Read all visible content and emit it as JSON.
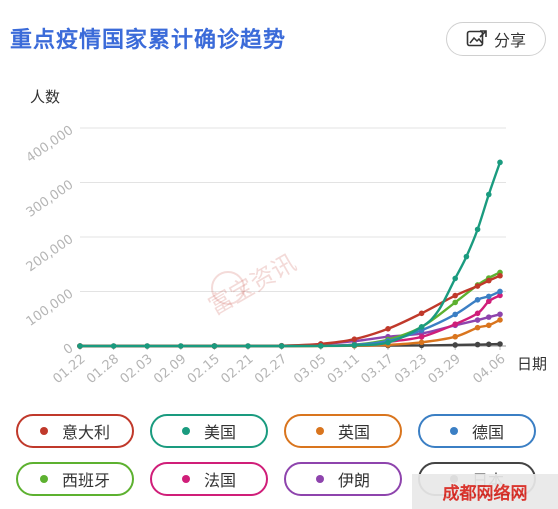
{
  "header": {
    "title": "重点疫情国家累计确诊趋势",
    "share_label": "分享",
    "share_icon": "share-image-icon"
  },
  "watermark": {
    "text": "富宝资讯",
    "corner_text": "成都网络网"
  },
  "colors": {
    "title": "#3b6bd9"
  },
  "chart_data": {
    "type": "line",
    "title": "",
    "ylabel": "人数",
    "xlabel": "日期",
    "ylim": [
      0,
      400000
    ],
    "yticks": [
      0,
      100000,
      200000,
      300000,
      400000
    ],
    "ytick_labels": [
      "0",
      "100,000",
      "200,000",
      "300,000",
      "400,000"
    ],
    "xtick_labels": [
      "01.22",
      "01.28",
      "02.03",
      "02.09",
      "02.15",
      "02.21",
      "02.27",
      "03.05",
      "03.11",
      "03.17",
      "03.23",
      "03.29",
      "04.06"
    ],
    "grid": "horizontal",
    "legend_position": "bottom",
    "x_days": [
      0,
      6,
      12,
      18,
      24,
      30,
      36,
      43,
      49,
      55,
      61,
      67,
      71,
      72,
      73,
      74,
      75
    ],
    "series": [
      {
        "name": "意大利",
        "color": "#c0392b",
        "points": [
          [
            0,
            0
          ],
          [
            6,
            0
          ],
          [
            12,
            0
          ],
          [
            18,
            0
          ],
          [
            24,
            0
          ],
          [
            30,
            0
          ],
          [
            36,
            600
          ],
          [
            43,
            3800
          ],
          [
            49,
            12500
          ],
          [
            55,
            31500
          ],
          [
            61,
            60000
          ],
          [
            67,
            92500
          ],
          [
            71,
            110000
          ],
          [
            73,
            120000
          ],
          [
            75,
            128900
          ]
        ]
      },
      {
        "name": "美国",
        "color": "#1a9b7f",
        "points": [
          [
            0,
            0
          ],
          [
            6,
            0
          ],
          [
            12,
            0
          ],
          [
            18,
            0
          ],
          [
            24,
            0
          ],
          [
            30,
            0
          ],
          [
            36,
            60
          ],
          [
            43,
            200
          ],
          [
            49,
            1300
          ],
          [
            55,
            6400
          ],
          [
            61,
            35000
          ],
          [
            64,
            65000
          ],
          [
            67,
            124000
          ],
          [
            69,
            164000
          ],
          [
            71,
            214000
          ],
          [
            73,
            278000
          ],
          [
            75,
            337000
          ]
        ]
      },
      {
        "name": "英国",
        "color": "#d9751e",
        "points": [
          [
            0,
            0
          ],
          [
            24,
            0
          ],
          [
            36,
            20
          ],
          [
            43,
            120
          ],
          [
            49,
            460
          ],
          [
            55,
            2000
          ],
          [
            61,
            6700
          ],
          [
            67,
            17000
          ],
          [
            71,
            33700
          ],
          [
            73,
            38000
          ],
          [
            75,
            47800
          ]
        ]
      },
      {
        "name": "德国",
        "color": "#3b7fc4",
        "points": [
          [
            0,
            0
          ],
          [
            24,
            0
          ],
          [
            36,
            30
          ],
          [
            43,
            540
          ],
          [
            49,
            2000
          ],
          [
            55,
            9300
          ],
          [
            61,
            29000
          ],
          [
            67,
            58000
          ],
          [
            71,
            84800
          ],
          [
            73,
            91000
          ],
          [
            75,
            100100
          ]
        ]
      },
      {
        "name": "西班牙",
        "color": "#5db130",
        "points": [
          [
            0,
            0
          ],
          [
            24,
            0
          ],
          [
            36,
            30
          ],
          [
            43,
            260
          ],
          [
            49,
            2300
          ],
          [
            55,
            11800
          ],
          [
            61,
            35000
          ],
          [
            67,
            80000
          ],
          [
            71,
            112000
          ],
          [
            73,
            124700
          ],
          [
            75,
            135000
          ]
        ]
      },
      {
        "name": "法国",
        "color": "#d01e79",
        "points": [
          [
            0,
            0
          ],
          [
            24,
            0
          ],
          [
            36,
            50
          ],
          [
            43,
            420
          ],
          [
            49,
            2300
          ],
          [
            55,
            7700
          ],
          [
            61,
            16700
          ],
          [
            67,
            40000
          ],
          [
            71,
            60000
          ],
          [
            73,
            82000
          ],
          [
            75,
            92800
          ]
        ]
      },
      {
        "name": "伊朗",
        "color": "#8e44ad",
        "points": [
          [
            0,
            0
          ],
          [
            24,
            0
          ],
          [
            36,
            100
          ],
          [
            43,
            3500
          ],
          [
            49,
            9000
          ],
          [
            55,
            17000
          ],
          [
            61,
            23000
          ],
          [
            67,
            38000
          ],
          [
            71,
            47600
          ],
          [
            73,
            53000
          ],
          [
            75,
            58200
          ]
        ]
      },
      {
        "name": "日本",
        "color": "#444444",
        "points": [
          [
            0,
            0
          ],
          [
            24,
            60
          ],
          [
            36,
            200
          ],
          [
            43,
            360
          ],
          [
            49,
            640
          ],
          [
            55,
            880
          ],
          [
            61,
            1100
          ],
          [
            67,
            1900
          ],
          [
            71,
            2600
          ],
          [
            73,
            3100
          ],
          [
            75,
            3650
          ]
        ]
      }
    ]
  }
}
